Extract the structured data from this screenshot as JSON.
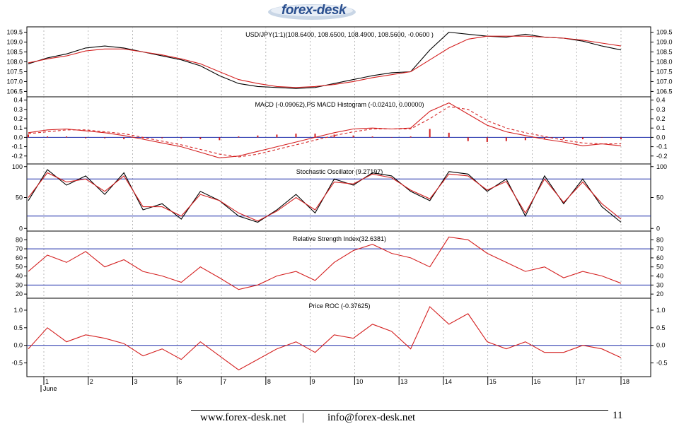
{
  "header": {
    "logo_text": "forex-desk"
  },
  "footer": {
    "website": "www.forex-desk.net",
    "separator": "|",
    "email": "info@forex-desk.net",
    "page_number": "11"
  },
  "colors": {
    "series_red": "#d42020",
    "blue_line": "#1a2aa8",
    "grid": "#9a9a9a",
    "logo_blue": "#2a4f8f"
  },
  "x_axis": {
    "labels": [
      "1",
      "2",
      "3",
      "6",
      "7",
      "8",
      "9",
      "10",
      "13",
      "14",
      "15",
      "16",
      "17",
      "18"
    ],
    "month_label": "June"
  },
  "chart_data": [
    {
      "type": "line",
      "id": "price",
      "title": "USD/JPY(1:1)(108.6400, 108.6500, 108.4900, 108.5600, -0.0600 )",
      "ylim": [
        106.3,
        109.7
      ],
      "yticks": [
        "109.5",
        "109.0",
        "108.5",
        "108.0",
        "107.5",
        "107.0",
        "106.5"
      ],
      "series": [
        {
          "values": [
            107.9,
            108.2,
            108.4,
            108.7,
            108.8,
            108.7,
            108.5,
            108.3,
            108.1,
            107.8,
            107.3,
            106.9,
            106.75,
            106.7,
            106.65,
            106.7,
            106.9,
            107.1,
            107.3,
            107.45,
            107.5,
            108.6,
            109.5,
            109.4,
            109.3,
            109.25,
            109.4,
            109.25,
            109.2,
            109.05,
            108.8,
            108.6
          ]
        },
        {
          "values": [
            107.95,
            108.15,
            108.3,
            108.55,
            108.65,
            108.65,
            108.5,
            108.35,
            108.15,
            107.9,
            107.5,
            107.1,
            106.9,
            106.75,
            106.7,
            106.75,
            106.85,
            107.0,
            107.2,
            107.35,
            107.5,
            108.1,
            108.7,
            109.15,
            109.3,
            109.3,
            109.3,
            109.25,
            109.2,
            109.1,
            108.95,
            108.8
          ]
        }
      ]
    },
    {
      "type": "line",
      "id": "macd",
      "title": "MACD (-0.09062),PS MACD Histogram (-0.02410, 0.00000)",
      "ylim": [
        -0.27,
        0.42
      ],
      "yticks": [
        "0.4",
        "0.3",
        "0.2",
        "0.1",
        "0.0",
        "-0.1",
        "-0.2"
      ],
      "series": [
        {
          "values": [
            0.05,
            0.08,
            0.09,
            0.07,
            0.05,
            0.02,
            -0.02,
            -0.06,
            -0.1,
            -0.16,
            -0.22,
            -0.2,
            -0.15,
            -0.1,
            -0.05,
            0.0,
            0.05,
            0.09,
            0.1,
            0.09,
            0.1,
            0.28,
            0.37,
            0.25,
            0.13,
            0.06,
            0.02,
            -0.02,
            -0.05,
            -0.09,
            -0.07,
            -0.09
          ]
        },
        {
          "values": [
            0.04,
            0.06,
            0.08,
            0.08,
            0.06,
            0.04,
            0.0,
            -0.04,
            -0.08,
            -0.13,
            -0.18,
            -0.21,
            -0.18,
            -0.13,
            -0.08,
            -0.03,
            0.02,
            0.06,
            0.09,
            0.09,
            0.09,
            0.2,
            0.33,
            0.3,
            0.18,
            0.1,
            0.05,
            0.01,
            -0.03,
            -0.06,
            -0.07,
            -0.07
          ]
        },
        {
          "values": [
            0.03,
            0.01,
            0.01,
            -0.01,
            -0.01,
            -0.02,
            -0.01,
            -0.01,
            -0.01,
            -0.02,
            -0.03,
            0.01,
            0.02,
            0.03,
            0.04,
            0.04,
            0.03,
            0.02,
            0.01,
            0.0,
            0.01,
            0.09,
            0.05,
            -0.04,
            -0.05,
            -0.04,
            -0.03,
            -0.02,
            -0.02,
            -0.02,
            0.0,
            -0.02
          ]
        }
      ]
    },
    {
      "type": "line",
      "id": "stochastic",
      "title": "Stochastic Oscillator (9.27197)",
      "ylim": [
        -2,
        102
      ],
      "yticks": [
        "100",
        "50",
        "0"
      ],
      "hlines": [
        80,
        20
      ],
      "series": [
        {
          "values": [
            45,
            95,
            70,
            85,
            55,
            90,
            30,
            40,
            15,
            60,
            45,
            20,
            10,
            30,
            55,
            25,
            80,
            70,
            90,
            85,
            60,
            45,
            92,
            88,
            60,
            80,
            20,
            85,
            40,
            80,
            35,
            10
          ]
        },
        {
          "values": [
            50,
            90,
            75,
            80,
            60,
            85,
            35,
            35,
            20,
            55,
            45,
            25,
            12,
            28,
            50,
            30,
            75,
            72,
            88,
            82,
            62,
            48,
            88,
            85,
            62,
            76,
            25,
            80,
            42,
            75,
            40,
            15
          ]
        }
      ]
    },
    {
      "type": "line",
      "id": "rsi",
      "title": "Relative Strength Index(32.6381)",
      "ylim": [
        17,
        88
      ],
      "yticks": [
        "80",
        "70",
        "60",
        "50",
        "40",
        "30",
        "20"
      ],
      "hlines": [
        70,
        30
      ],
      "series": [
        {
          "values": [
            45,
            63,
            55,
            67,
            50,
            58,
            45,
            40,
            33,
            50,
            38,
            25,
            30,
            40,
            45,
            35,
            55,
            68,
            75,
            65,
            60,
            50,
            83,
            80,
            65,
            55,
            45,
            50,
            38,
            45,
            40,
            32
          ]
        }
      ]
    },
    {
      "type": "line",
      "id": "roc",
      "title": "Price ROC (-0.37625)",
      "ylim": [
        -0.85,
        1.3
      ],
      "yticks": [
        "1.0",
        "0.5",
        "0.0",
        "-0.5"
      ],
      "hlines": [
        0.0
      ],
      "series": [
        {
          "values": [
            -0.1,
            0.5,
            0.1,
            0.3,
            0.2,
            0.05,
            -0.3,
            -0.1,
            -0.4,
            0.1,
            -0.3,
            -0.7,
            -0.4,
            -0.1,
            0.1,
            -0.2,
            0.3,
            0.2,
            0.6,
            0.4,
            -0.1,
            1.1,
            0.6,
            0.9,
            0.1,
            -0.1,
            0.1,
            -0.2,
            -0.2,
            0.0,
            -0.1,
            -0.35
          ]
        }
      ]
    }
  ]
}
